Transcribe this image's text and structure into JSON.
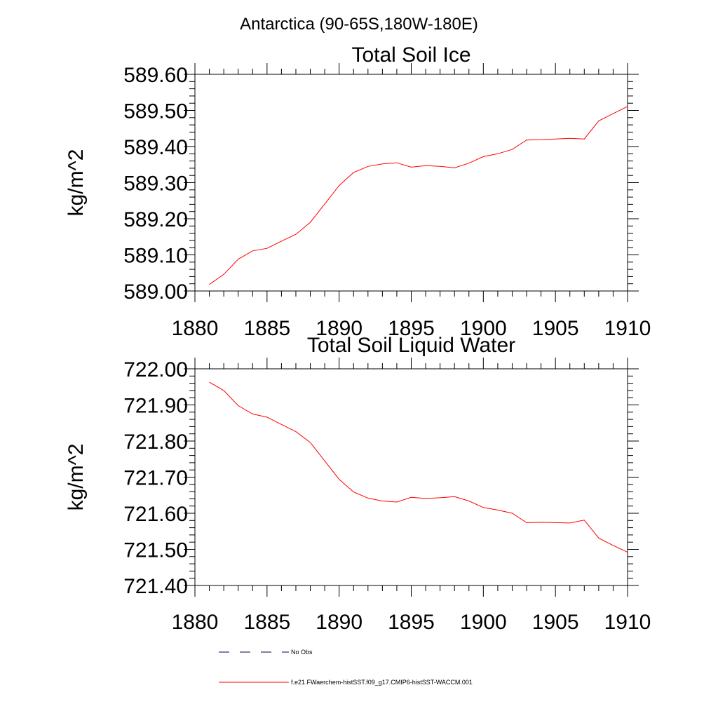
{
  "figure_title": "Antarctica (90-65S,180W-180E)",
  "colors": {
    "model": "#ff0000",
    "obs": "#00004d",
    "axes": "#000000"
  },
  "legend": {
    "obs_label": "No Obs",
    "model_label": "f.e21.FWaerchem-histSST.f09_g17.CMIP6-histSST-WACCM.001"
  },
  "chart_data": [
    {
      "type": "line",
      "title": "Total Soil Ice",
      "ylabel": "kg/m^2",
      "xlim": [
        1880,
        1910
      ],
      "ylim": [
        589.0,
        589.6
      ],
      "xticks": [
        1880,
        1885,
        1890,
        1895,
        1900,
        1905,
        1910
      ],
      "yticks": [
        "589.00",
        "589.10",
        "589.20",
        "589.30",
        "589.40",
        "589.50",
        "589.60"
      ],
      "grid": false,
      "series": [
        {
          "name": "f.e21.FWaerchem-histSST.f09_g17.CMIP6-histSST-WACCM.001",
          "x": [
            1881,
            1882,
            1883,
            1884,
            1885,
            1886,
            1887,
            1888,
            1889,
            1890,
            1891,
            1892,
            1893,
            1894,
            1895,
            1896,
            1897,
            1898,
            1899,
            1900,
            1901,
            1902,
            1903,
            1904,
            1905,
            1906,
            1907,
            1908,
            1909,
            1910
          ],
          "values": [
            589.018,
            589.046,
            589.088,
            589.111,
            589.118,
            589.138,
            589.157,
            589.19,
            589.241,
            589.292,
            589.328,
            589.345,
            589.352,
            589.355,
            589.343,
            589.347,
            589.345,
            589.341,
            589.354,
            589.372,
            589.38,
            589.392,
            589.418,
            589.419,
            589.421,
            589.423,
            589.421,
            589.471,
            589.491,
            589.511
          ]
        }
      ]
    },
    {
      "type": "line",
      "title": "Total Soil Liquid Water",
      "ylabel": "kg/m^2",
      "xlim": [
        1880,
        1910
      ],
      "ylim": [
        721.4,
        722.0
      ],
      "xticks": [
        1880,
        1885,
        1890,
        1895,
        1900,
        1905,
        1910
      ],
      "yticks": [
        "721.40",
        "721.50",
        "721.60",
        "721.70",
        "721.80",
        "721.90",
        "722.00"
      ],
      "grid": false,
      "series": [
        {
          "name": "f.e21.FWaerchem-histSST.f09_g17.CMIP6-histSST-WACCM.001",
          "x": [
            1881,
            1882,
            1883,
            1884,
            1885,
            1886,
            1887,
            1888,
            1889,
            1890,
            1891,
            1892,
            1893,
            1894,
            1895,
            1896,
            1897,
            1898,
            1899,
            1900,
            1901,
            1902,
            1903,
            1904,
            1905,
            1906,
            1907,
            1908,
            1909,
            1910
          ],
          "values": [
            721.963,
            721.94,
            721.898,
            721.875,
            721.866,
            721.846,
            721.826,
            721.796,
            721.745,
            721.694,
            721.659,
            721.642,
            721.634,
            721.631,
            721.644,
            721.641,
            721.643,
            721.646,
            721.634,
            721.616,
            721.609,
            721.6,
            721.574,
            721.575,
            721.574,
            721.573,
            721.581,
            721.531,
            721.511,
            721.492
          ]
        }
      ]
    }
  ]
}
